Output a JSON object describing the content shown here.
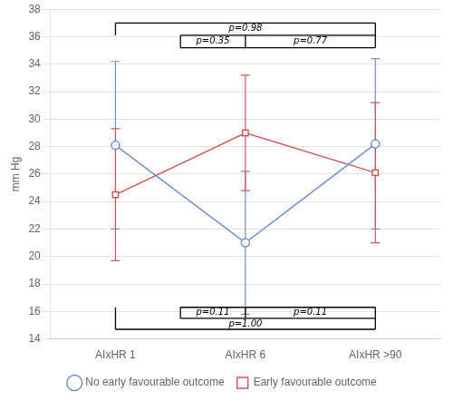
{
  "chart_data": {
    "type": "line",
    "ylabel": "mm Hg",
    "categories": [
      "AIxHR 1",
      "AIxHR 6",
      "AIxHR >90"
    ],
    "series": [
      {
        "name": "No early favourable outcome",
        "color": "#7090C8",
        "marker": "circle",
        "values": [
          28.1,
          21.0,
          28.2
        ],
        "ci_low": [
          22.0,
          15.8,
          22.0
        ],
        "ci_high": [
          34.2,
          26.2,
          34.4
        ]
      },
      {
        "name": "Early favourable outcome",
        "color": "#D05858",
        "marker": "square",
        "values": [
          24.5,
          29.0,
          26.1
        ],
        "ci_low": [
          19.7,
          24.8,
          21.0
        ],
        "ci_high": [
          29.3,
          33.2,
          31.2
        ]
      }
    ],
    "ylim": [
      14,
      38
    ],
    "yticks": [
      14,
      16,
      18,
      20,
      22,
      24,
      26,
      28,
      30,
      32,
      34,
      36,
      38
    ],
    "grid": true,
    "legend": "bottom",
    "annotations": [
      {
        "text": "p=0.98",
        "x": 1.0,
        "y": 37.0,
        "position": "below"
      },
      {
        "text": "p=0.35",
        "x": 0.75,
        "y": 36.1,
        "position": "below"
      },
      {
        "text": "p=0.77",
        "x": 1.5,
        "y": 36.1,
        "position": "below"
      },
      {
        "text": "p=0.11",
        "x": 0.75,
        "y": 16.3,
        "position": "below"
      },
      {
        "text": "p=0.11",
        "x": 1.5,
        "y": 16.3,
        "position": "below"
      },
      {
        "text": "p=1.00",
        "x": 1.0,
        "y": 14.7,
        "position": "above"
      }
    ],
    "brackets": [
      {
        "x": [
          0,
          2
        ],
        "y": [
          37.0,
          37.0
        ]
      },
      {
        "x": [
          0,
          0
        ],
        "y": [
          36.1,
          37.0
        ]
      },
      {
        "x": [
          2,
          2
        ],
        "y": [
          36.1,
          37.0
        ]
      },
      {
        "x": [
          0.5,
          2
        ],
        "y": [
          36.1,
          36.1
        ]
      },
      {
        "x": [
          0.5,
          0.5
        ],
        "y": [
          35.2,
          36.1
        ]
      },
      {
        "x": [
          2,
          2
        ],
        "y": [
          35.2,
          36.1
        ]
      },
      {
        "x": [
          0.5,
          2
        ],
        "y": [
          35.2,
          35.2
        ]
      },
      {
        "x": [
          1,
          1
        ],
        "y": [
          35.2,
          36.1
        ]
      },
      {
        "x": [
          0.5,
          2
        ],
        "y": [
          16.3,
          16.3
        ]
      },
      {
        "x": [
          0.5,
          2
        ],
        "y": [
          15.5,
          15.5
        ]
      },
      {
        "x": [
          0.5,
          0.5
        ],
        "y": [
          15.5,
          16.3
        ]
      },
      {
        "x": [
          2,
          2
        ],
        "y": [
          15.5,
          16.3
        ]
      },
      {
        "x": [
          1,
          1
        ],
        "y": [
          15.5,
          16.3
        ]
      },
      {
        "x": [
          0,
          2
        ],
        "y": [
          14.7,
          14.7
        ]
      },
      {
        "x": [
          0,
          0
        ],
        "y": [
          14.7,
          16.3
        ]
      },
      {
        "x": [
          2,
          2
        ],
        "y": [
          14.7,
          15.5
        ]
      }
    ]
  }
}
